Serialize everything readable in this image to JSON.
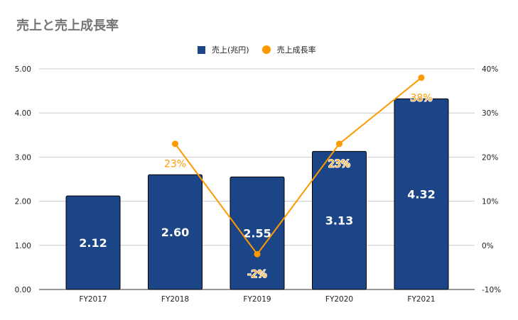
{
  "chart_data": {
    "type": "bar+line",
    "title": "売上と売上成長率",
    "categories": [
      "FY2017",
      "FY2018",
      "FY2019",
      "FY2020",
      "FY2021"
    ],
    "series": [
      {
        "name": "売上(兆円)",
        "type": "bar",
        "axis": "left",
        "color": "#1c4587",
        "values": [
          2.12,
          2.6,
          2.55,
          3.13,
          4.32
        ],
        "labels": [
          "2.12",
          "2.60",
          "2.55",
          "3.13",
          "4.32"
        ]
      },
      {
        "name": "売上成長率",
        "type": "line",
        "axis": "right",
        "color": "#ff9900",
        "values": [
          null,
          23,
          -2,
          23,
          38
        ],
        "labels": [
          null,
          "23%",
          "-2%",
          "23%",
          "38%"
        ]
      }
    ],
    "left_axis": {
      "ylim": [
        0,
        5
      ],
      "ticks": [
        "0.00",
        "1.00",
        "2.00",
        "3.00",
        "4.00",
        "5.00"
      ]
    },
    "right_axis": {
      "ylim": [
        -10,
        40
      ],
      "ticks": [
        "-10%",
        "0%",
        "10%",
        "20%",
        "30%",
        "40%"
      ]
    },
    "grid": true,
    "legend_placement": "top-center"
  }
}
